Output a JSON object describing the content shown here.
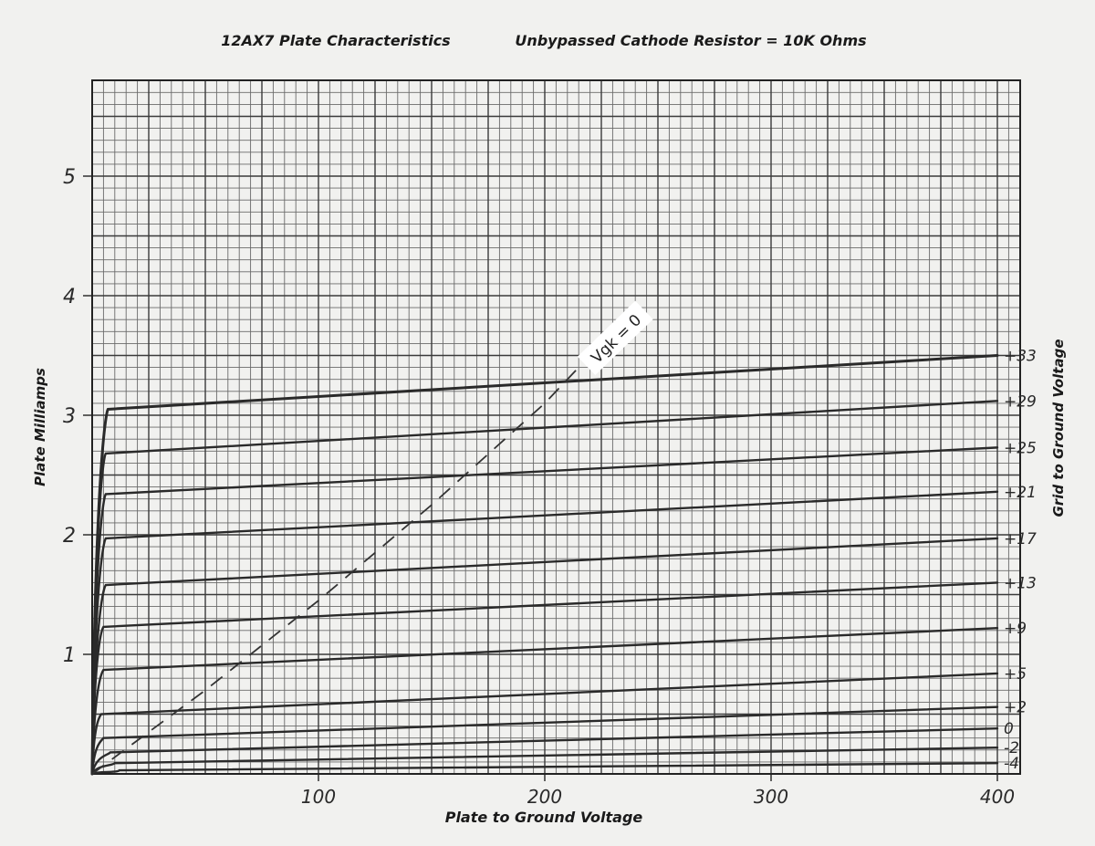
{
  "chart_data": {
    "type": "line",
    "title": "12AX7 Plate Characteristics",
    "subtitle": "Unbypassed Cathode Resistor = 10K Ohms",
    "xlabel": "Plate to Ground Voltage",
    "ylabel": "Plate Milliamps",
    "y2label": "Grid to Ground Voltage",
    "xlim": [
      0,
      400
    ],
    "ylim": [
      0,
      5.8
    ],
    "xticks": [
      "100",
      "200",
      "300",
      "400"
    ],
    "yticks": [
      "1",
      "2",
      "3",
      "4",
      "5"
    ],
    "grid": true,
    "series": [
      {
        "name": "+33",
        "knee_x": 7,
        "knee_y": 3.05,
        "end_y": 3.5
      },
      {
        "name": "+29",
        "knee_x": 6,
        "knee_y": 2.68,
        "end_y": 3.12
      },
      {
        "name": "+25",
        "knee_x": 6,
        "knee_y": 2.34,
        "end_y": 2.73
      },
      {
        "name": "+21",
        "knee_x": 6,
        "knee_y": 1.97,
        "end_y": 2.36
      },
      {
        "name": "+17",
        "knee_x": 6,
        "knee_y": 1.58,
        "end_y": 1.97
      },
      {
        "name": "+13",
        "knee_x": 5,
        "knee_y": 1.23,
        "end_y": 1.6
      },
      {
        "name": "+9",
        "knee_x": 5,
        "knee_y": 0.87,
        "end_y": 1.22
      },
      {
        "name": "+5",
        "knee_x": 4,
        "knee_y": 0.5,
        "end_y": 0.84
      },
      {
        "name": "+2",
        "knee_x": 5,
        "knee_y": 0.3,
        "end_y": 0.56
      },
      {
        "name": "0",
        "knee_x": 8,
        "knee_y": 0.18,
        "end_y": 0.38
      },
      {
        "name": "-2",
        "knee_x": 10,
        "knee_y": 0.09,
        "end_y": 0.22
      },
      {
        "name": "-4",
        "knee_x": 12,
        "knee_y": 0.03,
        "end_y": 0.09
      }
    ],
    "vgk_zero_line": {
      "label": "Vgk = 0",
      "x": [
        0,
        50,
        100,
        150,
        200,
        215
      ],
      "y": [
        0,
        0.7,
        1.45,
        2.25,
        3.1,
        3.4
      ]
    }
  }
}
